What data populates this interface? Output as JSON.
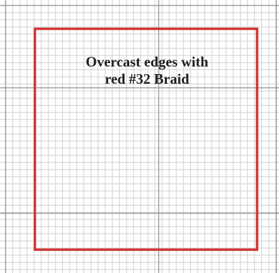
{
  "pattern": {
    "note_lines": [
      "Overcast edges with",
      "red #32 Braid"
    ],
    "colors": {
      "background": "#ffffff",
      "grid_minor": "#cfcfcf",
      "grid_major": "#8a8a8a",
      "outline": "#d03232",
      "text": "#1e1e1e"
    }
  }
}
